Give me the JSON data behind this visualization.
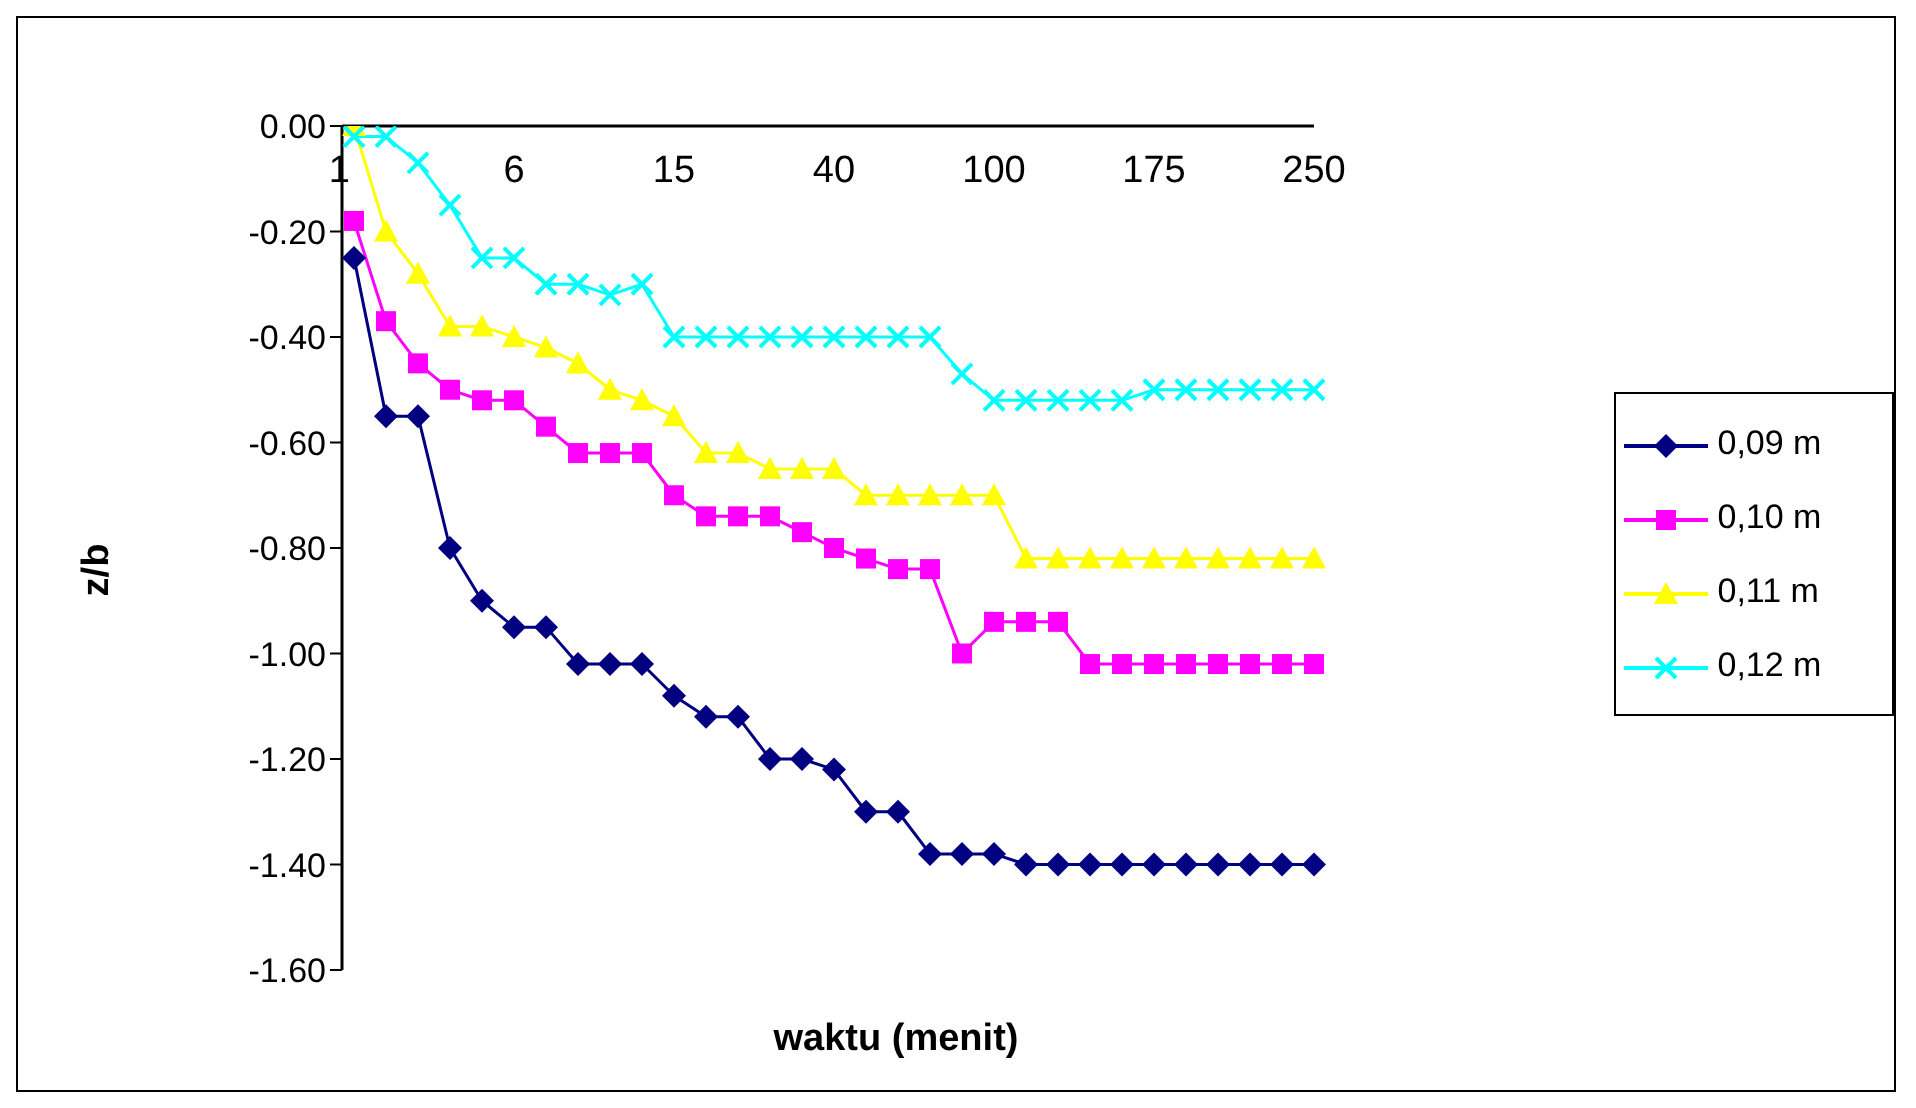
{
  "chart_data": {
    "type": "line",
    "xlabel": "waktu (menit)",
    "ylabel": "z/b",
    "categories": [
      "1",
      null,
      null,
      null,
      null,
      "6",
      null,
      null,
      null,
      null,
      "15",
      null,
      null,
      null,
      null,
      "40",
      null,
      null,
      null,
      null,
      "100",
      null,
      null,
      null,
      null,
      "175",
      null,
      null,
      null,
      null,
      "250"
    ],
    "series": [
      {
        "name": "0,09 m",
        "color": "#000080",
        "marker": "diamond",
        "values": [
          -0.25,
          -0.55,
          -0.55,
          -0.8,
          -0.9,
          -0.95,
          -0.95,
          -1.02,
          -1.02,
          -1.02,
          -1.08,
          -1.12,
          -1.12,
          -1.2,
          -1.2,
          -1.22,
          -1.3,
          -1.3,
          -1.38,
          -1.38,
          -1.38,
          -1.4,
          -1.4,
          -1.4,
          -1.4,
          -1.4,
          -1.4,
          -1.4,
          -1.4,
          -1.4,
          -1.4
        ]
      },
      {
        "name": "0,10 m",
        "color": "#ff00ff",
        "marker": "square",
        "values": [
          -0.18,
          -0.37,
          -0.45,
          -0.5,
          -0.52,
          -0.52,
          -0.57,
          -0.62,
          -0.62,
          -0.62,
          -0.7,
          -0.74,
          -0.74,
          -0.74,
          -0.77,
          -0.8,
          -0.82,
          -0.84,
          -0.84,
          -1.0,
          -0.94,
          -0.94,
          -0.94,
          -1.02,
          -1.02,
          -1.02,
          -1.02,
          -1.02,
          -1.02,
          -1.02,
          -1.02
        ]
      },
      {
        "name": "0,11 m",
        "color": "#ffff00",
        "marker": "triangle",
        "values": [
          0.0,
          -0.2,
          -0.28,
          -0.38,
          -0.38,
          -0.4,
          -0.42,
          -0.45,
          -0.5,
          -0.52,
          -0.55,
          -0.62,
          -0.62,
          -0.65,
          -0.65,
          -0.65,
          -0.7,
          -0.7,
          -0.7,
          -0.7,
          -0.7,
          -0.82,
          -0.82,
          -0.82,
          -0.82,
          -0.82,
          -0.82,
          -0.82,
          -0.82,
          -0.82,
          -0.82
        ]
      },
      {
        "name": "0,12 m",
        "color": "#00ffff",
        "marker": "cross",
        "values": [
          -0.02,
          -0.02,
          -0.07,
          -0.15,
          -0.25,
          -0.25,
          -0.3,
          -0.3,
          -0.32,
          -0.3,
          -0.4,
          -0.4,
          -0.4,
          -0.4,
          -0.4,
          -0.4,
          -0.4,
          -0.4,
          -0.4,
          -0.47,
          -0.52,
          -0.52,
          -0.52,
          -0.52,
          -0.52,
          -0.5,
          -0.5,
          -0.5,
          -0.5,
          -0.5,
          -0.5
        ]
      }
    ],
    "ylim": [
      -1.6,
      0
    ],
    "yticks": [
      {
        "value": 0,
        "label": "0.00"
      },
      {
        "value": -0.2,
        "label": "-0.20"
      },
      {
        "value": -0.4,
        "label": "-0.40"
      },
      {
        "value": -0.6,
        "label": "-0.60"
      },
      {
        "value": -0.8,
        "label": "-0.80"
      },
      {
        "value": -1.0,
        "label": "-1.00"
      },
      {
        "value": -1.2,
        "label": "-1.20"
      },
      {
        "value": -1.4,
        "label": "-1.40"
      },
      {
        "value": -1.6,
        "label": "-1.60"
      }
    ],
    "grid": false,
    "legend": "right"
  }
}
